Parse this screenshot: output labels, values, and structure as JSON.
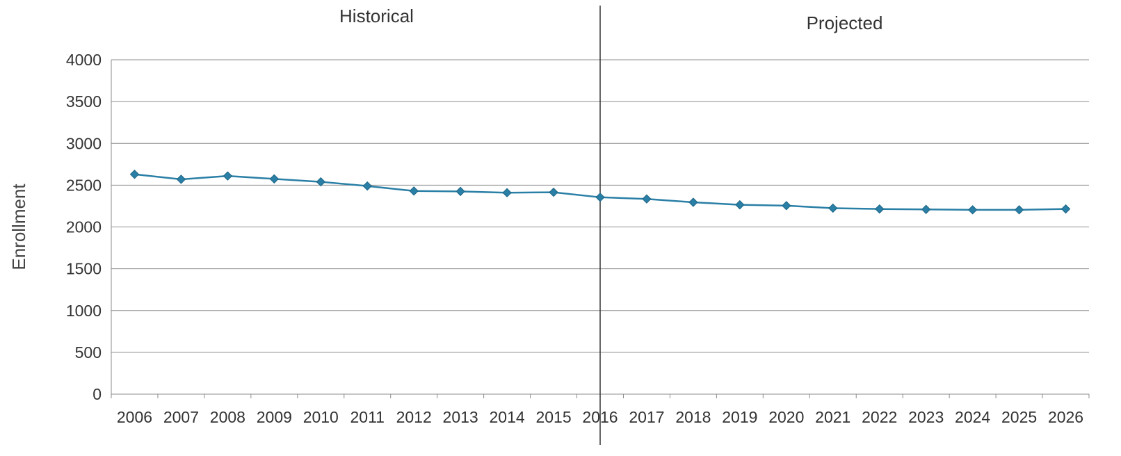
{
  "chart_data": {
    "type": "line",
    "x": [
      "2006",
      "2007",
      "2008",
      "2009",
      "2010",
      "2011",
      "2012",
      "2013",
      "2014",
      "2015",
      "2016",
      "2017",
      "2018",
      "2019",
      "2020",
      "2021",
      "2022",
      "2023",
      "2024",
      "2025",
      "2026"
    ],
    "series": [
      {
        "values": [
          2630,
          2570,
          2610,
          2575,
          2540,
          2490,
          2430,
          2425,
          2410,
          2415,
          2355,
          2335,
          2295,
          2265,
          2255,
          2225,
          2215,
          2210,
          2205,
          2205,
          2215
        ]
      }
    ],
    "ylabel": "Enrollment",
    "xlabel": "",
    "ylim": [
      0,
      4000
    ],
    "yticks": [
      "0",
      "500",
      "1000",
      "1500",
      "2000",
      "2500",
      "3000",
      "3500",
      "4000"
    ],
    "grid": true,
    "divider_at": "2016",
    "sections": {
      "historical": "Historical",
      "projected": "Projected"
    },
    "colors": {
      "series": "#2a7fa6",
      "grid": "#8c8c8c",
      "divider": "#333333"
    }
  }
}
